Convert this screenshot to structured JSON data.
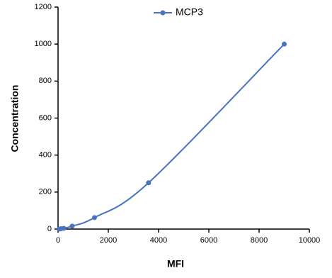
{
  "chart_data": {
    "type": "line",
    "x_label": "MFI",
    "y_label": "Concentration",
    "x": [
      40,
      120,
      230,
      560,
      1450,
      3600,
      9000
    ],
    "series": [
      {
        "name": "MCP3",
        "color": "#4a72c0",
        "values": [
          0,
          2,
          4,
          16,
          62,
          250,
          1000
        ]
      }
    ],
    "xlim": [
      0,
      10000
    ],
    "xticks": [
      0,
      2000,
      4000,
      6000,
      8000,
      10000
    ],
    "ylim": [
      0,
      1200
    ],
    "yticks": [
      0,
      200,
      400,
      600,
      800,
      1000,
      1200
    ],
    "smooth": true,
    "legend": "top"
  }
}
